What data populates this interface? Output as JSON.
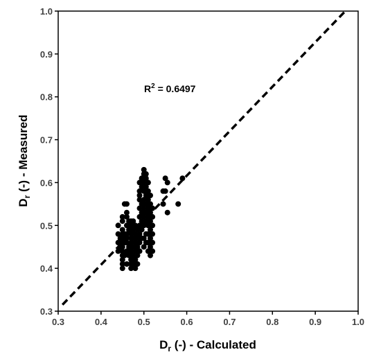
{
  "chart_data": {
    "type": "scatter",
    "title": "",
    "xlabel": {
      "main": "D",
      "sub": "r",
      "rest": " (-) - Calculated"
    },
    "ylabel": {
      "main": "D",
      "sub": "r",
      "rest": " (-) - Measured"
    },
    "xlim": [
      0.3,
      1.0
    ],
    "ylim": [
      0.3,
      1.0
    ],
    "xticks": [
      "0.3",
      "0.4",
      "0.5",
      "0.6",
      "0.7",
      "0.8",
      "0.9",
      "1.0"
    ],
    "yticks": [
      "0.3",
      "0.4",
      "0.5",
      "0.6",
      "0.7",
      "0.8",
      "0.9",
      "1.0"
    ],
    "grid": false,
    "annotation": {
      "text": "R",
      "sup": "2",
      "rest": " = 0.6497"
    },
    "trendline": {
      "style": "dashed",
      "points": [
        [
          0.31,
          0.315
        ],
        [
          0.97,
          1.0
        ]
      ]
    },
    "series": [
      {
        "marker_color": "#000000",
        "points": [
          [
            0.44,
            0.5
          ],
          [
            0.44,
            0.48
          ],
          [
            0.44,
            0.46
          ],
          [
            0.44,
            0.44
          ],
          [
            0.445,
            0.47
          ],
          [
            0.445,
            0.45
          ],
          [
            0.45,
            0.42
          ],
          [
            0.45,
            0.41
          ],
          [
            0.45,
            0.4
          ],
          [
            0.45,
            0.43
          ],
          [
            0.45,
            0.44
          ],
          [
            0.45,
            0.45
          ],
          [
            0.45,
            0.46
          ],
          [
            0.45,
            0.47
          ],
          [
            0.45,
            0.48
          ],
          [
            0.45,
            0.49
          ],
          [
            0.45,
            0.51
          ],
          [
            0.45,
            0.52
          ],
          [
            0.455,
            0.43
          ],
          [
            0.455,
            0.46
          ],
          [
            0.455,
            0.48
          ],
          [
            0.455,
            0.55
          ],
          [
            0.46,
            0.41
          ],
          [
            0.46,
            0.44
          ],
          [
            0.46,
            0.46
          ],
          [
            0.46,
            0.47
          ],
          [
            0.46,
            0.48
          ],
          [
            0.46,
            0.5
          ],
          [
            0.46,
            0.52
          ],
          [
            0.46,
            0.53
          ],
          [
            0.46,
            0.55
          ],
          [
            0.465,
            0.43
          ],
          [
            0.465,
            0.45
          ],
          [
            0.465,
            0.49
          ],
          [
            0.465,
            0.51
          ],
          [
            0.47,
            0.4
          ],
          [
            0.47,
            0.41
          ],
          [
            0.47,
            0.42
          ],
          [
            0.47,
            0.43
          ],
          [
            0.47,
            0.44
          ],
          [
            0.47,
            0.45
          ],
          [
            0.47,
            0.46
          ],
          [
            0.47,
            0.47
          ],
          [
            0.47,
            0.48
          ],
          [
            0.47,
            0.49
          ],
          [
            0.47,
            0.5
          ],
          [
            0.47,
            0.51
          ],
          [
            0.475,
            0.41
          ],
          [
            0.475,
            0.43
          ],
          [
            0.475,
            0.45
          ],
          [
            0.475,
            0.47
          ],
          [
            0.475,
            0.49
          ],
          [
            0.475,
            0.51
          ],
          [
            0.48,
            0.4
          ],
          [
            0.48,
            0.42
          ],
          [
            0.48,
            0.44
          ],
          [
            0.48,
            0.46
          ],
          [
            0.48,
            0.48
          ],
          [
            0.48,
            0.5
          ],
          [
            0.485,
            0.41
          ],
          [
            0.485,
            0.43
          ],
          [
            0.485,
            0.45
          ],
          [
            0.485,
            0.47
          ],
          [
            0.485,
            0.49
          ],
          [
            0.49,
            0.44
          ],
          [
            0.49,
            0.46
          ],
          [
            0.49,
            0.48
          ],
          [
            0.49,
            0.5
          ],
          [
            0.49,
            0.52
          ],
          [
            0.49,
            0.54
          ],
          [
            0.49,
            0.56
          ],
          [
            0.49,
            0.57
          ],
          [
            0.49,
            0.58
          ],
          [
            0.49,
            0.6
          ],
          [
            0.495,
            0.47
          ],
          [
            0.495,
            0.49
          ],
          [
            0.495,
            0.51
          ],
          [
            0.495,
            0.53
          ],
          [
            0.495,
            0.55
          ],
          [
            0.495,
            0.59
          ],
          [
            0.495,
            0.61
          ],
          [
            0.5,
            0.45
          ],
          [
            0.5,
            0.47
          ],
          [
            0.5,
            0.5
          ],
          [
            0.5,
            0.52
          ],
          [
            0.5,
            0.54
          ],
          [
            0.5,
            0.56
          ],
          [
            0.5,
            0.58
          ],
          [
            0.5,
            0.6
          ],
          [
            0.5,
            0.62
          ],
          [
            0.5,
            0.63
          ],
          [
            0.505,
            0.46
          ],
          [
            0.505,
            0.48
          ],
          [
            0.505,
            0.51
          ],
          [
            0.505,
            0.53
          ],
          [
            0.505,
            0.55
          ],
          [
            0.505,
            0.57
          ],
          [
            0.505,
            0.59
          ],
          [
            0.505,
            0.61
          ],
          [
            0.505,
            0.62
          ],
          [
            0.51,
            0.44
          ],
          [
            0.51,
            0.46
          ],
          [
            0.51,
            0.48
          ],
          [
            0.51,
            0.5
          ],
          [
            0.51,
            0.52
          ],
          [
            0.51,
            0.54
          ],
          [
            0.51,
            0.56
          ],
          [
            0.51,
            0.58
          ],
          [
            0.51,
            0.6
          ],
          [
            0.515,
            0.43
          ],
          [
            0.515,
            0.45
          ],
          [
            0.515,
            0.47
          ],
          [
            0.515,
            0.49
          ],
          [
            0.515,
            0.51
          ],
          [
            0.515,
            0.53
          ],
          [
            0.515,
            0.55
          ],
          [
            0.515,
            0.57
          ],
          [
            0.52,
            0.44
          ],
          [
            0.52,
            0.46
          ],
          [
            0.52,
            0.48
          ],
          [
            0.52,
            0.5
          ],
          [
            0.52,
            0.52
          ],
          [
            0.52,
            0.54
          ],
          [
            0.545,
            0.55
          ],
          [
            0.55,
            0.61
          ],
          [
            0.55,
            0.58
          ],
          [
            0.555,
            0.6
          ],
          [
            0.555,
            0.53
          ],
          [
            0.545,
            0.58
          ],
          [
            0.58,
            0.55
          ],
          [
            0.59,
            0.61
          ]
        ]
      }
    ]
  }
}
